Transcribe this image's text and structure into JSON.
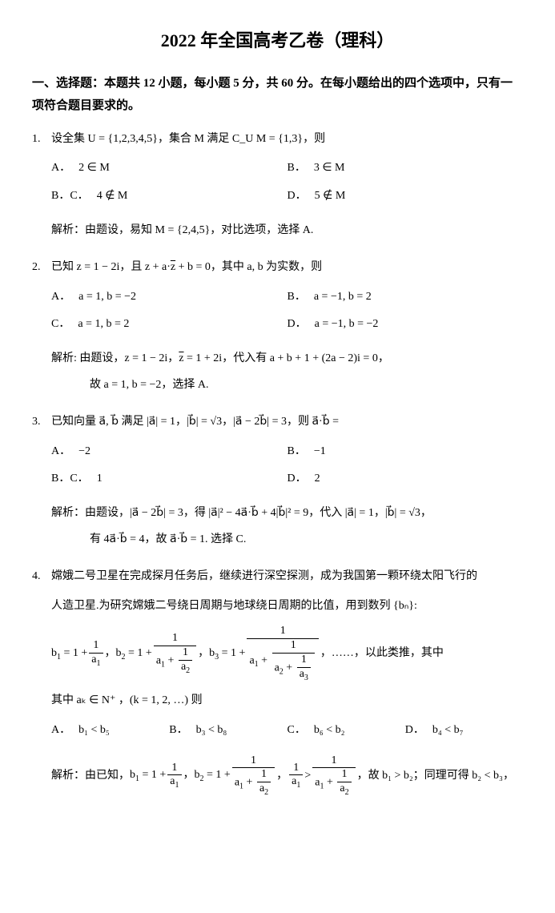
{
  "title": "2022 年全国高考乙卷（理科）",
  "section_header": "一、选择题：本题共 12 小题，每小题 5 分，共 60 分。在每小题给出的四个选项中，只有一项符合题目要求的。",
  "q1": {
    "num": "1.",
    "stem": "设全集 U = {1,2,3,4,5}，集合 M 满足 C_U M = {1,3}，则",
    "A_label": "A．",
    "A": "2 ∈ M",
    "B_label": "B．",
    "B": "3 ∈ M",
    "C_label": "B．C．",
    "C": "4 ∉ M",
    "D_label": "D．",
    "D": "5 ∉ M",
    "sol": "解析：由题设，易知 M = {2,4,5}，对比选项，选择 A."
  },
  "q2": {
    "num": "2.",
    "stem_pre": "已知 z = 1 − 2i，且 z + a·",
    "stem_zbar": "z",
    "stem_post": " + b = 0，其中 a, b 为实数，则",
    "A_label": "A．",
    "A": "a = 1, b = −2",
    "B_label": "B．",
    "B": "a = −1, b = 2",
    "C_label": "C．",
    "C": "a = 1, b = 2",
    "D_label": "D．",
    "D": "a = −1, b = −2",
    "sol_pre": "解析: 由题设，z = 1 − 2i，",
    "sol_zbar": "z",
    "sol_post": " = 1 + 2i，代入有 a + b + 1 + (2a − 2)i = 0，",
    "sol2": "故 a = 1, b = −2，选择 A."
  },
  "q3": {
    "num": "3.",
    "stem": "已知向量 a⃗, b⃗ 满足 |a⃗| = 1，|b⃗| = √3，|a⃗ − 2b⃗| = 3，则 a⃗·b⃗ =",
    "A_label": "A．",
    "A": "−2",
    "B_label": "B．",
    "B": "−1",
    "C_label": "B．C．",
    "C": "1",
    "D_label": "D．",
    "D": "2",
    "sol": "解析：由题设，|a⃗ − 2b⃗| = 3，得 |a⃗|² − 4a⃗·b⃗ + 4|b⃗|² = 9，代入 |a⃗| = 1，|b⃗| = √3，",
    "sol2": "有 4a⃗·b⃗ = 4，故 a⃗·b⃗ = 1. 选择 C."
  },
  "q4": {
    "num": "4.",
    "stem1": "嫦娥二号卫星在完成探月任务后，继续进行深空探测，成为我国第一颗环绕太阳飞行的",
    "stem2": "人造卫星.为研究嫦娥二号绕日周期与地球绕日周期的比值，用到数列 {bₙ}:",
    "tail": "，……，以此类推，其中",
    "cond": "其中 aₖ ∈ N⁺ ，(k = 1, 2, …) 则",
    "A_label": "A．",
    "A": "b₁ < b₅",
    "B_label": "B．",
    "B": "b₃ < b₈",
    "C_label": "C．",
    "C": "b₆ < b₂",
    "D_label": "D．",
    "D": "b₄ < b₇",
    "sol_pre": "解析：由已知，",
    "sol_tail": "，故 b₁ > b₂；同理可得 b₂ < b₃，"
  }
}
